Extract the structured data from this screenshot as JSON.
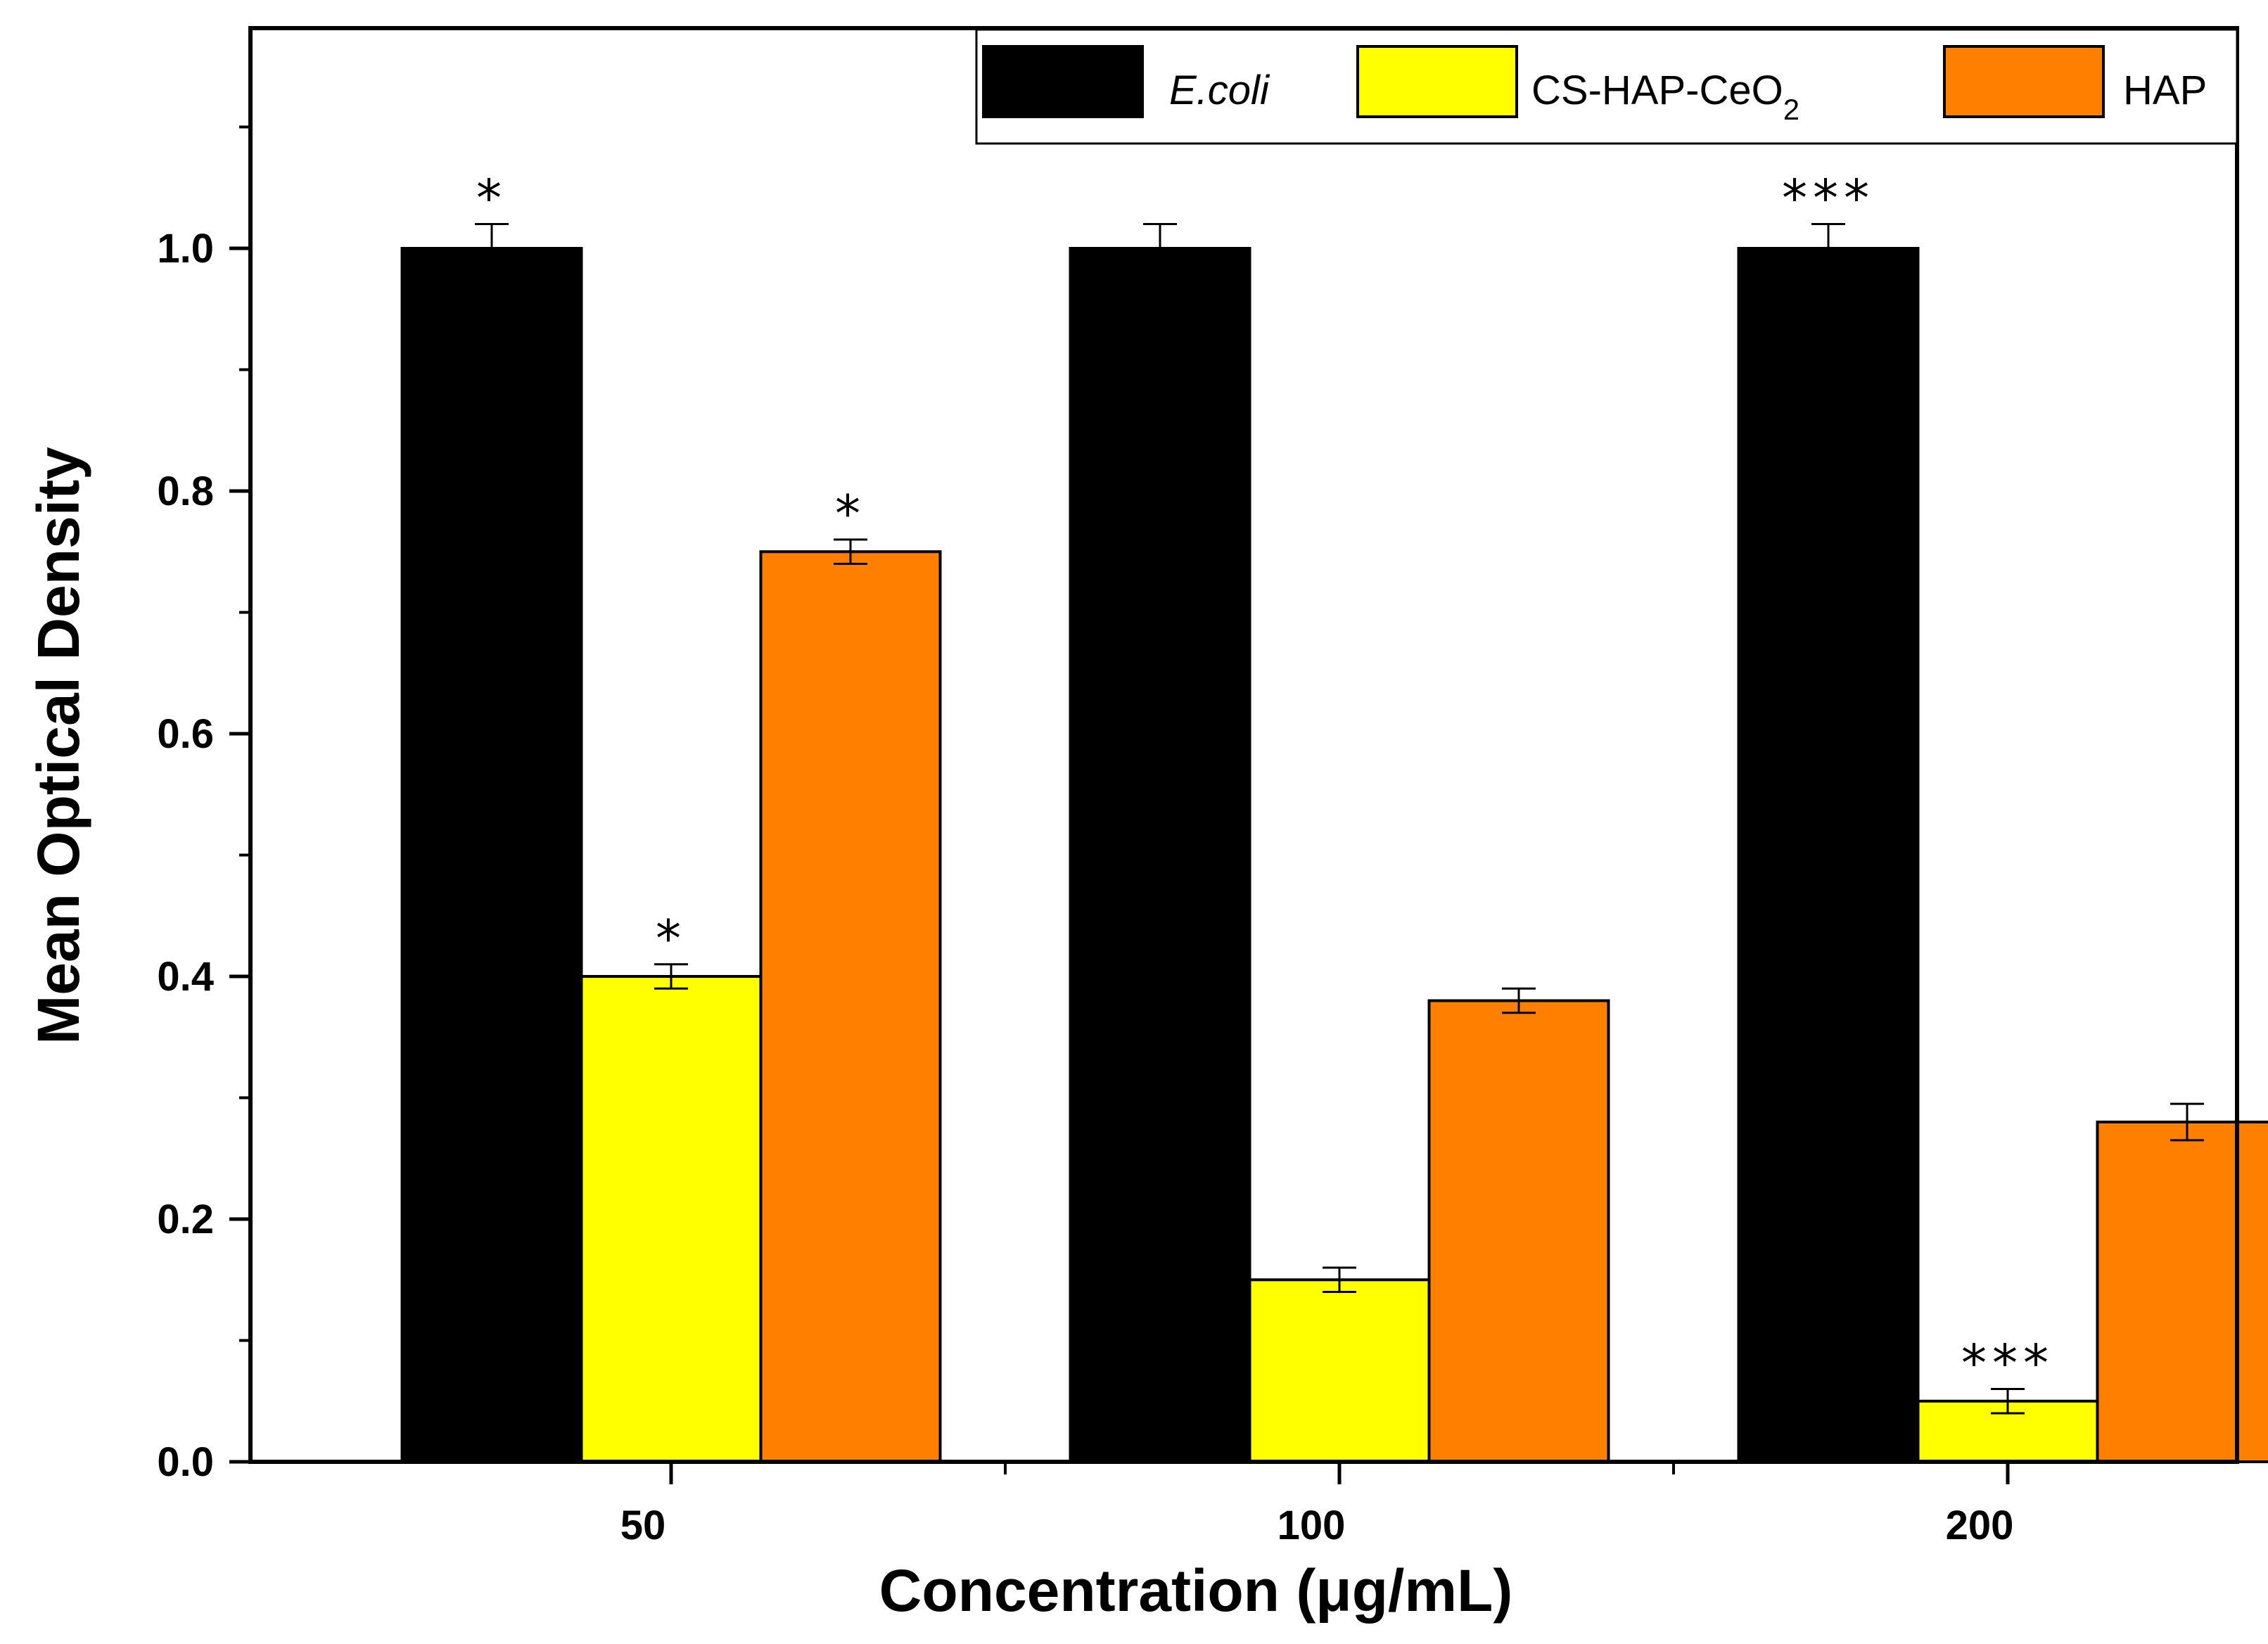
{
  "chart_data": {
    "type": "bar",
    "title": "",
    "xlabel": "Concentration (μg/mL)",
    "ylabel": "Mean Optical Density",
    "categories": [
      "50",
      "100",
      "200"
    ],
    "ylim": [
      0,
      1.15
    ],
    "yticks": [
      0.0,
      0.2,
      0.4,
      0.6,
      0.8,
      1.0
    ],
    "ytick_labels": [
      "0.0",
      "0.2",
      "0.4",
      "0.6",
      "0.8",
      "1.0"
    ],
    "legend_position": "top-right",
    "series": [
      {
        "name": "E.coli",
        "color": "#000000",
        "values": [
          1.0,
          1.0,
          1.0
        ],
        "errors": [
          0.02,
          0.02,
          0.02
        ],
        "annotations": [
          "*",
          "",
          "***"
        ]
      },
      {
        "name": "CS-HAP-CeO",
        "name_subscript": "2",
        "color": "#ffff00",
        "values": [
          0.4,
          0.15,
          0.05
        ],
        "errors": [
          0.01,
          0.01,
          0.01
        ],
        "annotations": [
          "*",
          "",
          "***"
        ]
      },
      {
        "name": "HAP",
        "color": "#ff8000",
        "values": [
          0.75,
          0.38,
          0.28
        ],
        "errors": [
          0.01,
          0.01,
          0.015
        ],
        "annotations": [
          "*",
          "",
          ""
        ]
      }
    ]
  }
}
